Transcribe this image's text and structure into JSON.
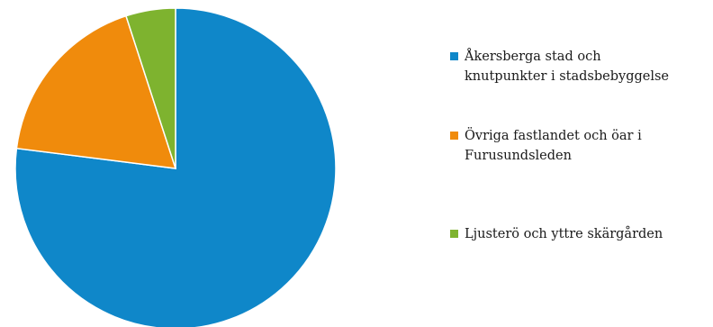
{
  "chart_data": {
    "type": "pie",
    "title": "",
    "legend_position": "right",
    "slices": [
      {
        "label": "Åkersberga stad och knutpunkter i stadsbebyggelse",
        "value": 77,
        "color": "#0f87c9"
      },
      {
        "label": "Övriga fastlandet och öar i Furusundsleden",
        "value": 18,
        "color": "#f08b0c"
      },
      {
        "label": "Ljusterö och yttre skärgården",
        "value": 5,
        "color": "#7eb32f"
      }
    ]
  }
}
